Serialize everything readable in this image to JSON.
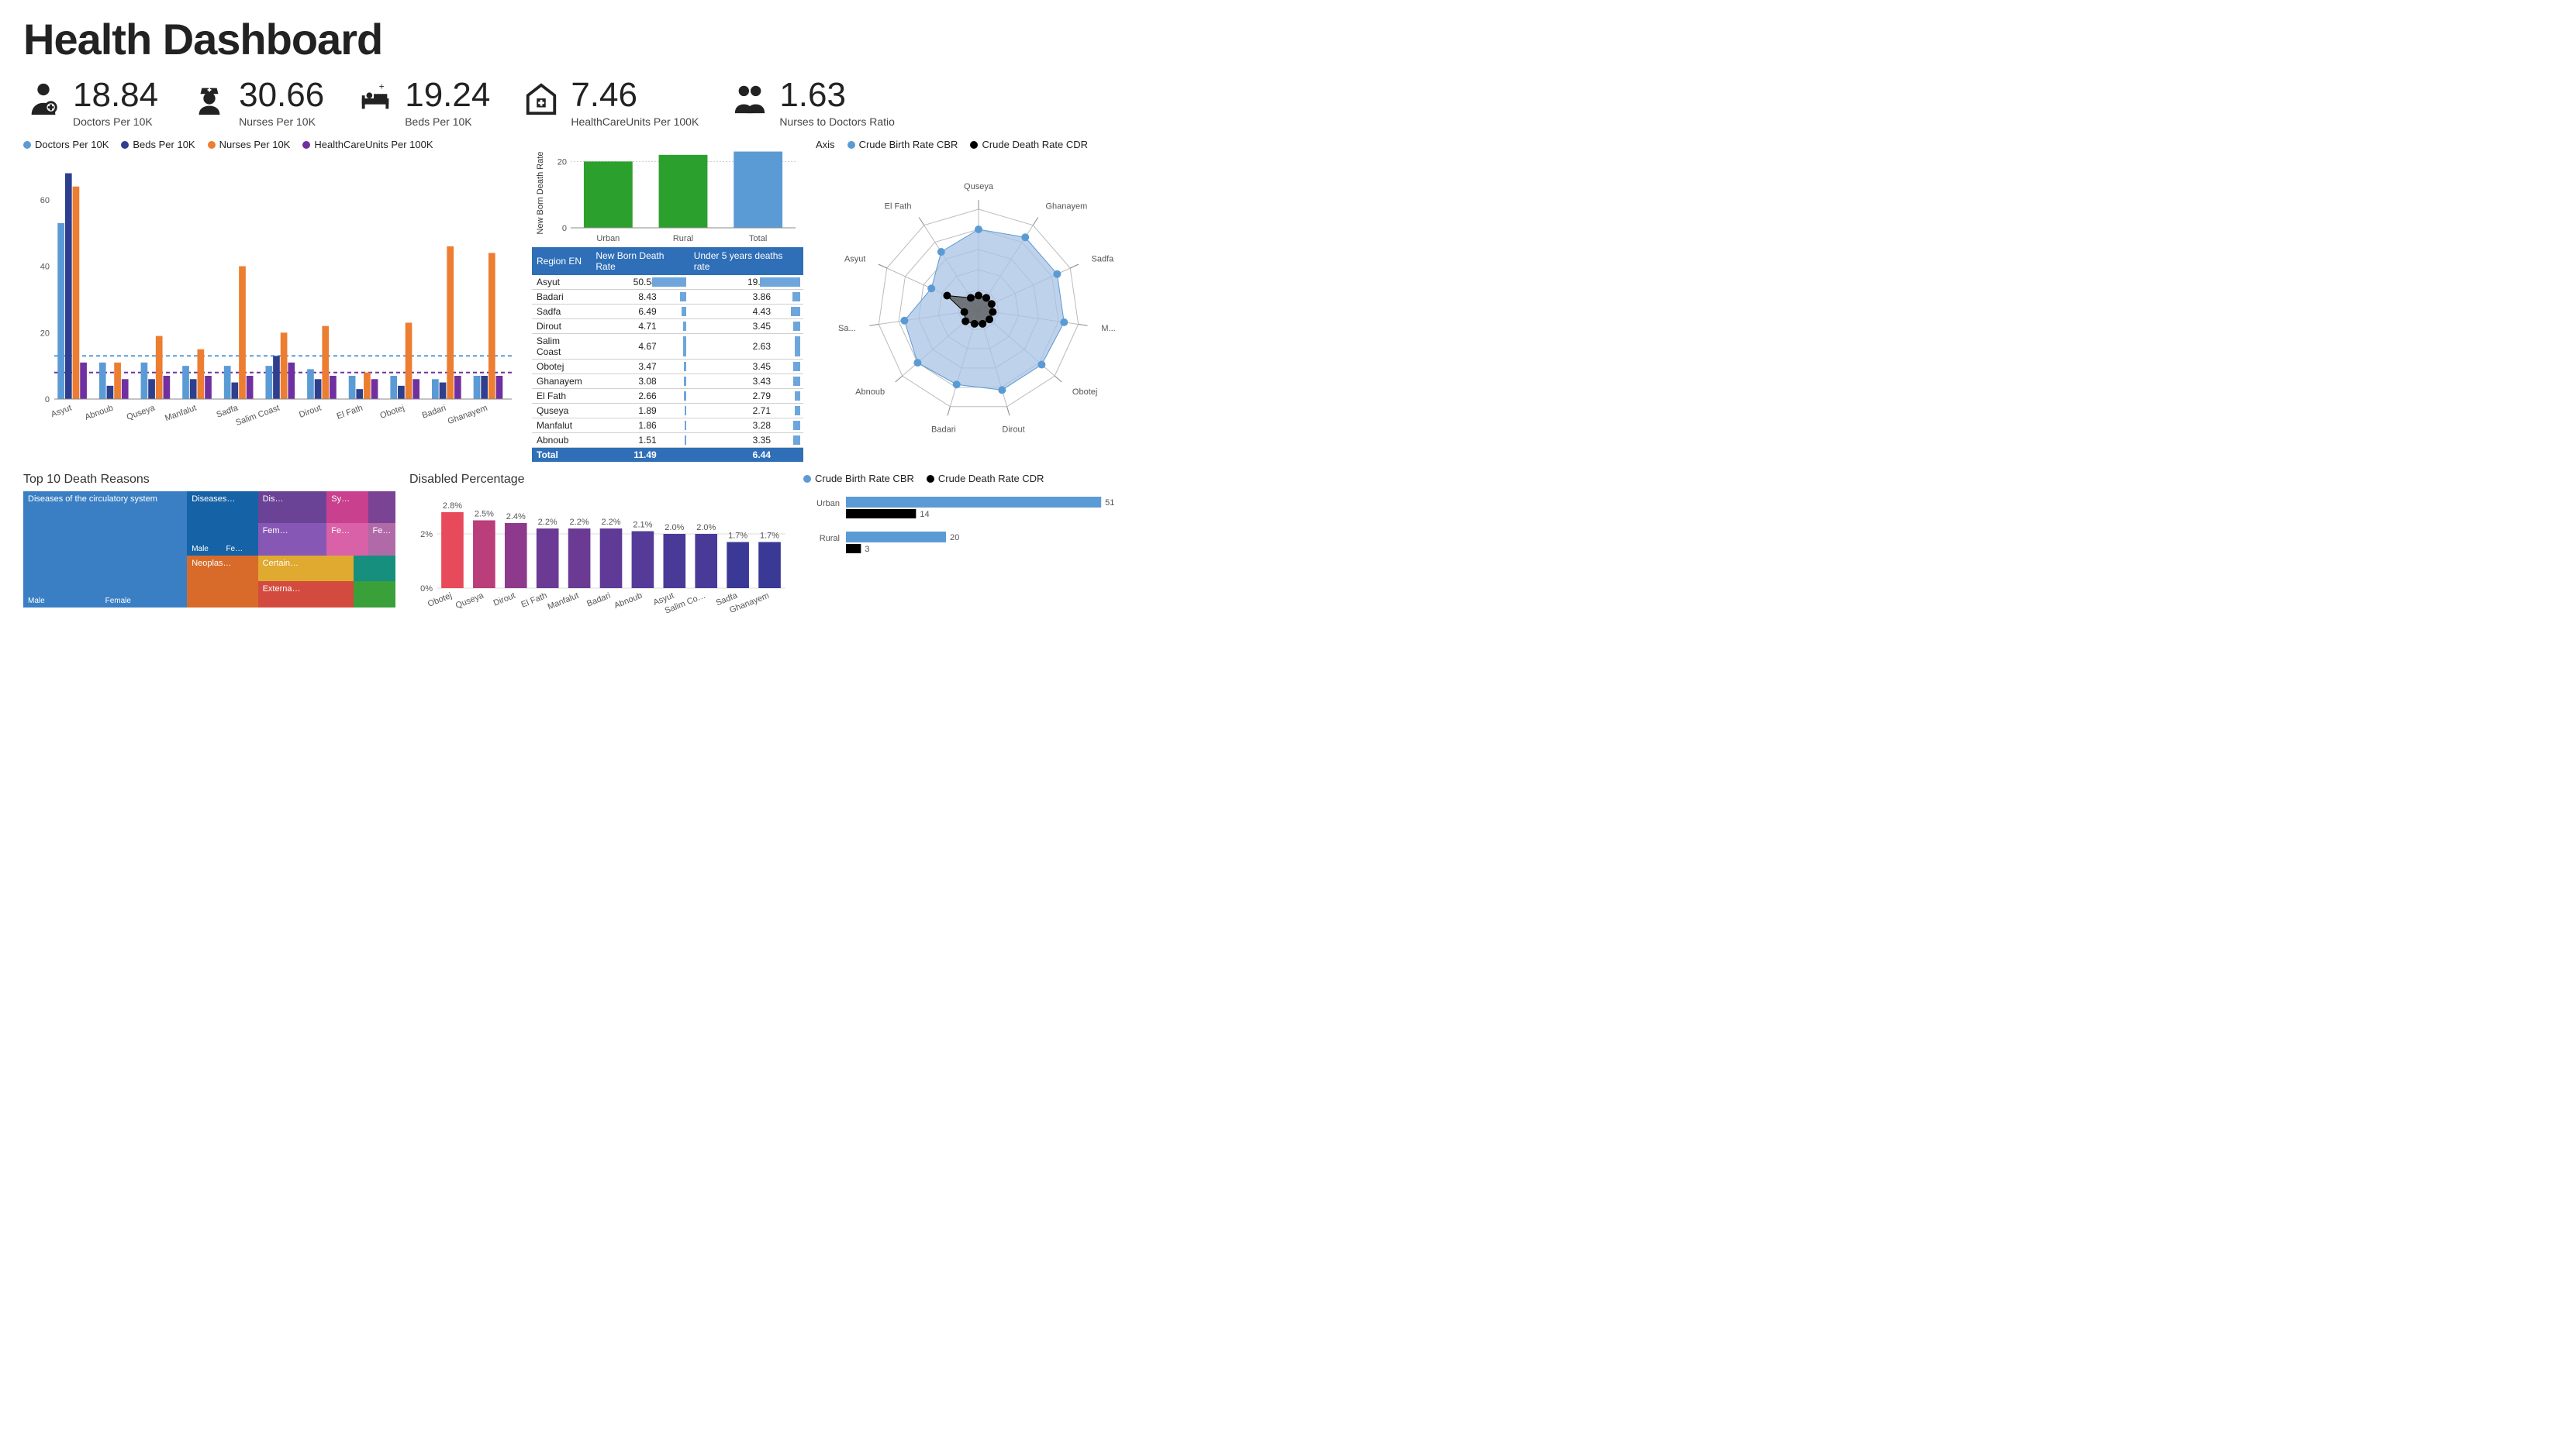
{
  "title": "Health Dashboard",
  "theme": {
    "text": "#222222",
    "accent_blue": "#5b9bd5",
    "accent_navy": "#2e3f8f",
    "accent_orange": "#ed7d31",
    "accent_purple": "#7030a0",
    "accent_green": "#2ca02c",
    "table_header": "#2f6fb7",
    "table_bar": "#6ea6dc"
  },
  "kpis": [
    {
      "value": "18.84",
      "label": "Doctors Per 10K",
      "icon": "doctor"
    },
    {
      "value": "30.66",
      "label": "Nurses Per 10K",
      "icon": "nurse"
    },
    {
      "value": "19.24",
      "label": "Beds Per 10K",
      "icon": "bed"
    },
    {
      "value": "7.46",
      "label": "HealthCareUnits Per 100K",
      "icon": "clinic"
    },
    {
      "value": "1.63",
      "label": "Nurses to Doctors Ratio",
      "icon": "pair"
    }
  ],
  "grouped_bar": {
    "legend": [
      {
        "label": "Doctors Per 10K",
        "color": "#5b9bd5"
      },
      {
        "label": "Beds Per 10K",
        "color": "#2e3f8f"
      },
      {
        "label": "Nurses Per 10K",
        "color": "#ed7d31"
      },
      {
        "label": "HealthCareUnits Per 100K",
        "color": "#7030a0"
      }
    ],
    "categories": [
      "Asyut",
      "Abnoub",
      "Quseya",
      "Manfalut",
      "Sadfa",
      "Salim Coast",
      "Dirout",
      "El Fath",
      "Obotej",
      "Badari",
      "Ghanayem"
    ],
    "series": {
      "Doctors": [
        53,
        11,
        11,
        10,
        10,
        10,
        9,
        7,
        7,
        6,
        7
      ],
      "Beds": [
        68,
        4,
        6,
        6,
        5,
        13,
        6,
        3,
        4,
        5,
        7
      ],
      "Nurses": [
        64,
        11,
        19,
        15,
        40,
        20,
        22,
        8,
        23,
        46,
        44
      ],
      "HealthCareUnits": [
        11,
        6,
        7,
        7,
        7,
        11,
        7,
        6,
        6,
        7,
        7
      ]
    },
    "ylim": [
      0,
      70
    ],
    "ytick_step": 20,
    "avg_lines": [
      {
        "value": 13,
        "color": "#5b9bd5"
      },
      {
        "value": 8,
        "color": "#7030a0"
      }
    ]
  },
  "newborn_bar": {
    "ylabel": "New Born Death Rate",
    "categories": [
      "Urban",
      "Rural",
      "Total"
    ],
    "values": [
      20,
      22,
      23
    ],
    "colors": [
      "#2ca02c",
      "#2ca02c",
      "#5b9bd5"
    ],
    "ylim": [
      0,
      25
    ],
    "ytick": 20
  },
  "mortality_table": {
    "columns": [
      "Region EN",
      "New Born Death Rate",
      "Under 5 years deaths rate"
    ],
    "rows": [
      [
        "Asyut",
        "50.58",
        "19.18"
      ],
      [
        "Badari",
        "8.43",
        "3.86"
      ],
      [
        "Sadfa",
        "6.49",
        "4.43"
      ],
      [
        "Dirout",
        "4.71",
        "3.45"
      ],
      [
        "Salim Coast",
        "4.67",
        "2.63"
      ],
      [
        "Obotej",
        "3.47",
        "3.45"
      ],
      [
        "Ghanayem",
        "3.08",
        "3.43"
      ],
      [
        "El Fath",
        "2.66",
        "2.79"
      ],
      [
        "Quseya",
        "1.89",
        "2.71"
      ],
      [
        "Manfalut",
        "1.86",
        "3.28"
      ],
      [
        "Abnoub",
        "1.51",
        "3.35"
      ]
    ],
    "total": [
      "Total",
      "11.49",
      "6.44"
    ],
    "bar_max": [
      50.58,
      19.18
    ]
  },
  "radar": {
    "legend": [
      {
        "label": "Crude Birth Rate CBR",
        "color": "#5b9bd5"
      },
      {
        "label": "Crude Death Rate CDR",
        "color": "#000000"
      }
    ],
    "axis_label": "Axis",
    "axes": [
      "Quseya",
      "Ghanayem",
      "Sadfa",
      "M...",
      "Obotej",
      "Dirout",
      "Badari",
      "Abnoub",
      "Sa...",
      "Asyut",
      "El Fath"
    ],
    "cbr": [
      28,
      30,
      30,
      30,
      29,
      29,
      27,
      28,
      26,
      18,
      24
    ],
    "cdr": [
      5,
      5,
      5,
      5,
      5,
      5,
      5,
      6,
      5,
      12,
      5
    ],
    "max": 35,
    "fill": "#a8c3e4"
  },
  "treemap": {
    "title": "Top 10 Death Reasons",
    "blocks": [
      {
        "label": "Diseases of the circulatory system",
        "color": "#3a7fc4",
        "w": 0.44,
        "sub": [
          "Male",
          "Female"
        ]
      },
      {
        "label": "",
        "color": "#2f6fb7",
        "w": 0.56,
        "children": [
          {
            "label": "Diseases…",
            "color": "#1662a6",
            "w": 0.3,
            "h": 0.55,
            "sub": [
              "Male",
              "Fe…"
            ]
          },
          {
            "label": "Neoplas…",
            "color": "#d86b2a",
            "w": 0.3,
            "h": 0.45
          },
          {
            "label": "Dis…",
            "color": "#6b4396",
            "w": 0.17,
            "h": 0.33
          },
          {
            "label": "Fem…",
            "color": "#8757b5",
            "w": 0.17,
            "h": 0.33
          },
          {
            "label": "Certain…",
            "color": "#e0a92f",
            "w": 0.17,
            "h": 0.34
          },
          {
            "label": "Externa…",
            "color": "#d34b3e",
            "w": 0.17,
            "h": 0.33
          },
          {
            "label": "Sy…",
            "color": "#c9408f",
            "w": 0.13,
            "h": 0.33
          },
          {
            "label": "Fe…",
            "color": "#d861a8",
            "w": 0.13,
            "h": 0.33
          },
          {
            "label": "Fe…",
            "color": "#b06aa8",
            "w": 0.1,
            "h": 0.34
          },
          {
            "label": "",
            "color": "#7a4394",
            "w": 0.1,
            "h": 0.33
          },
          {
            "label": "",
            "color": "#178f7e",
            "w": 0.1,
            "h": 0.5
          },
          {
            "label": "",
            "color": "#3aa03a",
            "w": 0.1,
            "h": 0.5
          }
        ]
      }
    ]
  },
  "disabled": {
    "title": "Disabled Percentage",
    "categories": [
      "Obotej",
      "Quseya",
      "Dirout",
      "El Fath",
      "Manfalut",
      "Badari",
      "Abnoub",
      "Asyut",
      "Salim Co…",
      "Sadfa",
      "Ghanayem"
    ],
    "values": [
      2.8,
      2.5,
      2.4,
      2.2,
      2.2,
      2.2,
      2.1,
      2.0,
      2.0,
      1.7,
      1.7
    ],
    "labels": [
      "2.8%",
      "2.5%",
      "2.4%",
      "2.2%",
      "2.2%",
      "2.2%",
      "2.1%",
      "2.0%",
      "2.0%",
      "1.7%",
      "1.7%"
    ],
    "colors": [
      "#e74a5a",
      "#b93e7a",
      "#8e3a8c",
      "#6b3a94",
      "#6b3a94",
      "#5f3a97",
      "#563a98",
      "#4a3a98",
      "#4a3a98",
      "#3a3a96",
      "#3a3a96"
    ],
    "ylim": [
      0,
      3
    ],
    "yticks": [
      0,
      2
    ]
  },
  "crude_hbar": {
    "legend": [
      {
        "label": "Crude Birth Rate CBR",
        "color": "#5b9bd5"
      },
      {
        "label": "Crude Death Rate CDR",
        "color": "#000000"
      }
    ],
    "rows": [
      {
        "label": "Urban",
        "cbr": 51,
        "cdr": 14
      },
      {
        "label": "Rural",
        "cbr": 20,
        "cdr": 3
      }
    ],
    "xmax": 55
  }
}
